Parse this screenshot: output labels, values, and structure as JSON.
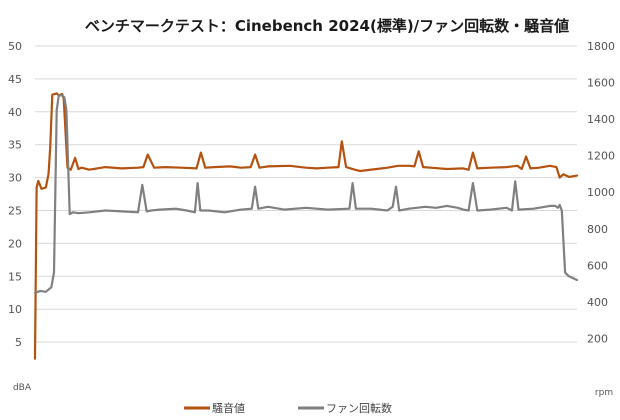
{
  "chart_data": {
    "type": "line",
    "title": "ベンチマークテスト：Cinebench 2024(標準)/ファン回転数・騒音値",
    "xlabel": "",
    "y_left": {
      "unit": "dBA",
      "range": [
        0,
        50
      ],
      "ticks": [
        5,
        10,
        15,
        20,
        25,
        30,
        35,
        40,
        45,
        50
      ]
    },
    "y_right": {
      "unit": "rpm",
      "range": [
        0,
        1800
      ],
      "ticks": [
        200,
        400,
        600,
        800,
        1000,
        1200,
        1400,
        1600,
        1800
      ]
    },
    "grid": true,
    "legend_position": "bottom",
    "x_range": [
      0,
      1000
    ],
    "series": [
      {
        "name": "騒音値",
        "axis": "left",
        "color": "#b5520f",
        "x": [
          0,
          3,
          6,
          12,
          20,
          25,
          28,
          32,
          40,
          44,
          50,
          53,
          60,
          66,
          74,
          80,
          86,
          100,
          130,
          160,
          190,
          200,
          208,
          220,
          240,
          270,
          298,
          306,
          314,
          330,
          360,
          380,
          398,
          406,
          414,
          430,
          470,
          500,
          520,
          540,
          560,
          566,
          574,
          590,
          600,
          630,
          650,
          670,
          690,
          700,
          708,
          716,
          730,
          760,
          790,
          800,
          808,
          816,
          840,
          870,
          890,
          898,
          906,
          914,
          930,
          950,
          962,
          968,
          975,
          985,
          1000
        ],
        "values": [
          2.5,
          28.5,
          29.5,
          28.3,
          28.5,
          30.5,
          34.5,
          42.6,
          42.8,
          42.5,
          42.7,
          42.0,
          31.5,
          31.2,
          33.0,
          31.3,
          31.5,
          31.2,
          31.6,
          31.4,
          31.5,
          31.6,
          33.5,
          31.5,
          31.6,
          31.5,
          31.4,
          33.8,
          31.5,
          31.6,
          31.7,
          31.5,
          31.6,
          33.5,
          31.5,
          31.7,
          31.8,
          31.5,
          31.4,
          31.5,
          31.6,
          35.5,
          31.6,
          31.2,
          31.0,
          31.3,
          31.5,
          31.8,
          31.8,
          31.7,
          34.0,
          31.6,
          31.5,
          31.3,
          31.4,
          31.2,
          33.8,
          31.4,
          31.5,
          31.6,
          31.8,
          31.3,
          33.2,
          31.4,
          31.5,
          31.8,
          31.6,
          30.0,
          30.5,
          30.1,
          30.3
        ]
      },
      {
        "name": "ファン回転数",
        "axis": "right",
        "color": "#808080",
        "x": [
          0,
          10,
          20,
          30,
          35,
          40,
          44,
          50,
          54,
          58,
          64,
          70,
          80,
          100,
          130,
          160,
          190,
          198,
          206,
          214,
          230,
          260,
          280,
          295,
          300,
          305,
          320,
          350,
          380,
          400,
          406,
          412,
          430,
          460,
          500,
          540,
          580,
          586,
          592,
          620,
          650,
          660,
          666,
          672,
          690,
          720,
          740,
          760,
          780,
          790,
          800,
          808,
          816,
          840,
          870,
          880,
          886,
          892,
          920,
          950,
          960,
          965,
          968,
          972,
          978,
          985,
          1000
        ],
        "values": [
          450,
          460,
          455,
          480,
          560,
          1450,
          1530,
          1530,
          1520,
          1450,
          880,
          890,
          885,
          890,
          900,
          895,
          890,
          1040,
          895,
          900,
          905,
          910,
          900,
          890,
          1050,
          900,
          900,
          890,
          905,
          910,
          1030,
          910,
          920,
          905,
          915,
          905,
          910,
          1050,
          910,
          910,
          900,
          920,
          1030,
          900,
          910,
          920,
          915,
          925,
          915,
          905,
          900,
          1050,
          900,
          905,
          915,
          900,
          1060,
          905,
          910,
          925,
          925,
          915,
          930,
          900,
          560,
          540,
          520
        ]
      }
    ]
  }
}
